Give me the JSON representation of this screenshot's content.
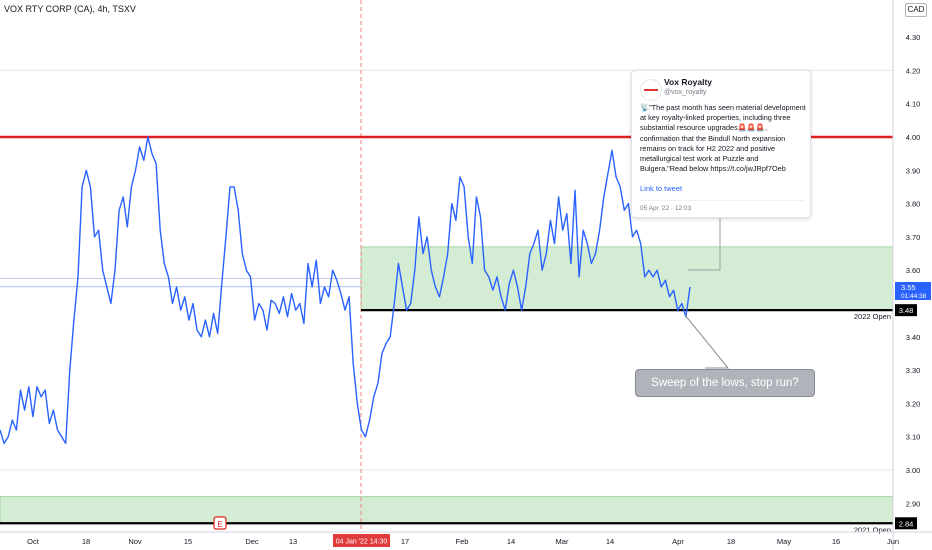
{
  "header": {
    "symbol_line": "VOX RTY CORP (CA), 4h, TSXV",
    "currency": "CAD"
  },
  "tweet": {
    "name": "Vox Royalty",
    "handle": "@vox_royalty",
    "text": "📡\"The past month has seen material development at key royalty-linked properties, including three substantial resource upgrades🚨🚨🚨, confirmation that the Bindull North expansion remains on track for H2 2022 and positive metallurgical test work at Puzzle and Bulgera.\"Read below https://t.co/jwJRpf7Oeb",
    "link": "Link to tweet",
    "date": "05 Apr '22 · 12:03"
  },
  "callout": {
    "text": "Sweep of the lows, stop run?"
  },
  "colors": {
    "line": "#2962ff",
    "resistance": "#e02020",
    "zone_fill": "#d4ecd4",
    "zone_border": "#8fcf8f",
    "crosshair": "#f08080"
  },
  "chart_data": {
    "type": "line",
    "title": "VOX RTY CORP (CA), 4h, TSXV",
    "ylim": [
      2.82,
      4.46
    ],
    "y_ticks": [
      "4.30",
      "4.20",
      "4.10",
      "4.00",
      "3.90",
      "3.80",
      "3.70",
      "3.60",
      "3.40",
      "3.30",
      "3.20",
      "3.10",
      "3.00",
      "2.90"
    ],
    "x_ticks": [
      "Oct",
      "18",
      "Nov",
      "15",
      "Dec",
      "13",
      "17",
      "Feb",
      "14",
      "Mar",
      "14",
      "Apr",
      "18",
      "May",
      "16",
      "Jun"
    ],
    "crosshair_label": "04 Jan '22   14:30",
    "price_label": {
      "value": "3.55",
      "countdown": "01:44:38"
    },
    "levels": [
      {
        "label": "2022 Open",
        "value": "3.48",
        "color": "#000000"
      },
      {
        "label": "2021 Open",
        "value": "2.84",
        "color": "#000000"
      },
      {
        "label": "",
        "value": 4.0,
        "color": "#e02020"
      }
    ],
    "zones": [
      {
        "from": 3.48,
        "to": 3.67,
        "start": "04 Jan '22"
      },
      {
        "from": 2.84,
        "to": 2.92,
        "start": "start"
      }
    ],
    "series": [
      {
        "values": [
          3.12,
          3.08,
          3.1,
          3.15,
          3.12,
          3.24,
          3.18,
          3.25,
          3.16,
          3.25,
          3.22,
          3.24,
          3.14,
          3.18,
          3.12,
          3.1,
          3.08,
          3.3,
          3.45,
          3.58,
          3.85,
          3.9,
          3.85,
          3.7,
          3.72,
          3.6,
          3.55,
          3.5,
          3.6,
          3.78,
          3.82,
          3.73,
          3.85,
          3.9,
          3.97,
          3.93,
          4.0,
          3.95,
          3.92,
          3.72,
          3.62,
          3.58,
          3.5,
          3.55,
          3.48,
          3.52,
          3.45,
          3.5,
          3.42,
          3.4,
          3.45,
          3.4,
          3.47,
          3.41,
          3.56,
          3.7,
          3.85,
          3.85,
          3.78,
          3.65,
          3.6,
          3.58,
          3.45,
          3.5,
          3.48,
          3.42,
          3.51,
          3.5,
          3.47,
          3.52,
          3.46,
          3.53,
          3.48,
          3.5,
          3.44,
          3.62,
          3.55,
          3.63,
          3.5,
          3.55,
          3.52,
          3.6,
          3.57,
          3.53,
          3.48,
          3.52,
          3.32,
          3.2,
          3.12,
          3.1,
          3.15,
          3.22,
          3.26,
          3.35,
          3.38,
          3.4,
          3.5,
          3.62,
          3.55,
          3.48,
          3.5,
          3.6,
          3.76,
          3.65,
          3.7,
          3.6,
          3.55,
          3.52,
          3.58,
          3.65,
          3.8,
          3.75,
          3.88,
          3.85,
          3.7,
          3.62,
          3.82,
          3.76,
          3.6,
          3.58,
          3.54,
          3.58,
          3.52,
          3.48,
          3.56,
          3.6,
          3.55,
          3.48,
          3.55,
          3.65,
          3.68,
          3.72,
          3.6,
          3.65,
          3.75,
          3.68,
          3.82,
          3.72,
          3.77,
          3.62,
          3.84,
          3.58,
          3.72,
          3.68,
          3.62,
          3.65,
          3.72,
          3.82,
          3.89,
          3.96,
          3.88,
          3.85,
          3.78,
          3.8,
          3.7,
          3.72,
          3.68,
          3.58,
          3.6,
          3.58,
          3.6,
          3.55,
          3.57,
          3.52,
          3.54,
          3.48,
          3.5,
          3.46,
          3.55
        ]
      }
    ]
  }
}
